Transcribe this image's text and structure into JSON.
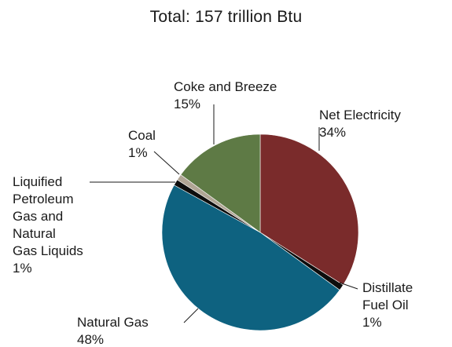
{
  "chart_data": {
    "type": "pie",
    "title": "Total: 157 trillion Btu",
    "slices": [
      {
        "name": "Net Electricity",
        "label_lines": [
          "Net Electricity",
          "34%"
        ],
        "value": 34,
        "color": "#7a2b2b"
      },
      {
        "name": "Distillate Fuel Oil",
        "label_lines": [
          "Distillate",
          "Fuel Oil",
          "1%"
        ],
        "value": 1,
        "color": "#0d0d0d"
      },
      {
        "name": "Natural Gas",
        "label_lines": [
          "Natural Gas",
          "48%"
        ],
        "value": 48,
        "color": "#0e6280"
      },
      {
        "name": "Liquified Petroleum Gas and Natural Gas Liquids",
        "label_lines": [
          "Liquified",
          "Petroleum",
          "Gas and",
          "Natural",
          "Gas Liquids",
          "1%"
        ],
        "value": 1,
        "color": "#0d0d0d"
      },
      {
        "name": "Coal",
        "label_lines": [
          "Coal",
          "1%"
        ],
        "value": 1,
        "color": "#b0a595"
      },
      {
        "name": "Coke and Breeze",
        "label_lines": [
          "Coke and Breeze",
          "15%"
        ],
        "value": 15,
        "color": "#5e7a45"
      }
    ],
    "legend": "none"
  }
}
